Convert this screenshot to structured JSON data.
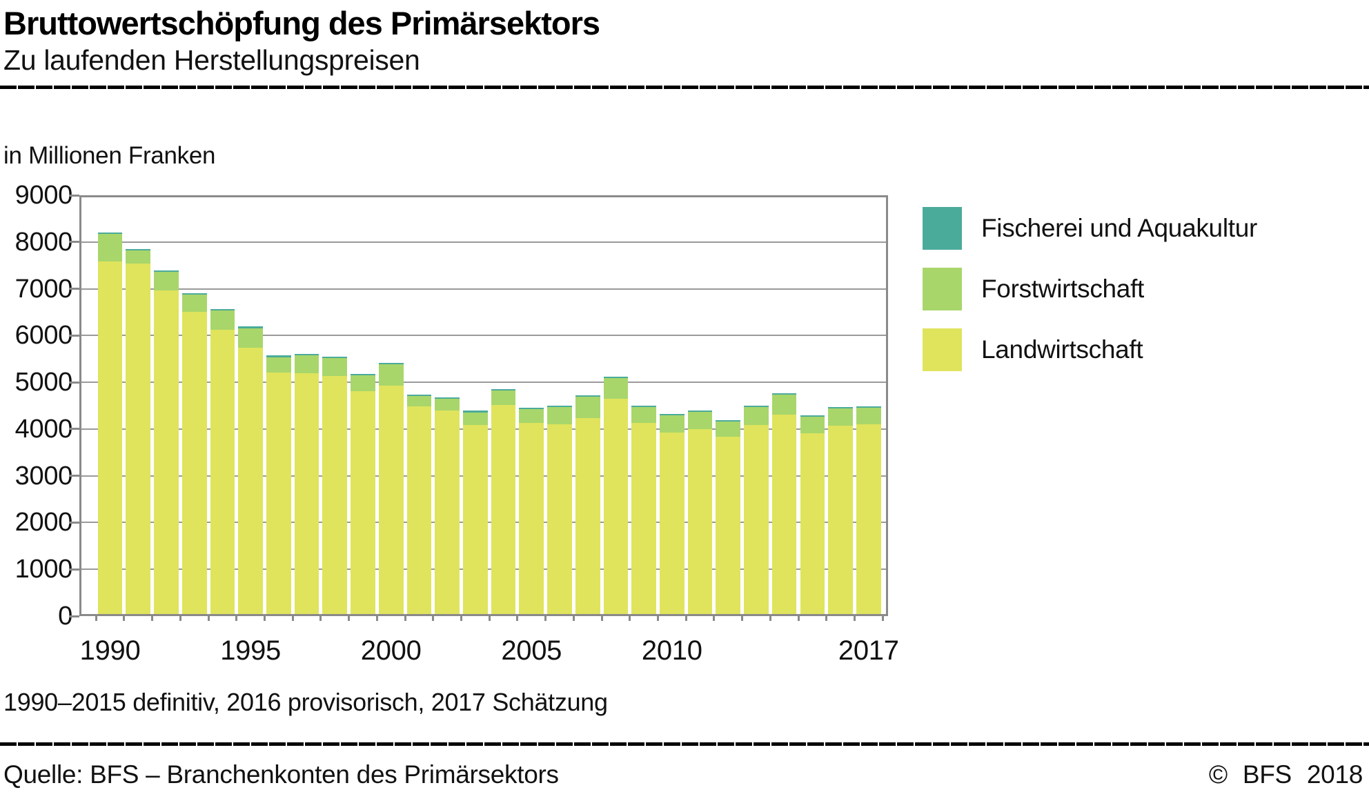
{
  "header": {
    "title": "Bruttowertschöpfung des Primärsektors",
    "subtitle": "Zu laufenden Herstellungspreisen"
  },
  "chart_data": {
    "type": "bar",
    "stacked": true,
    "title": "Bruttowertschöpfung des Primärsektors",
    "subtitle": "Zu laufenden Herstellungspreisen",
    "unit_label": "in Millionen Franken",
    "ylabel": "in Millionen Franken",
    "xlabel": "",
    "ylim": [
      0,
      9000
    ],
    "ytick_step": 1000,
    "grid": true,
    "legend_position": "right",
    "categories": [
      1990,
      1991,
      1992,
      1993,
      1994,
      1995,
      1996,
      1997,
      1998,
      1999,
      2000,
      2001,
      2002,
      2003,
      2004,
      2005,
      2006,
      2007,
      2008,
      2009,
      2010,
      2011,
      2012,
      2013,
      2014,
      2015,
      2016,
      2017
    ],
    "x_ticks": [
      {
        "label": "1990",
        "index": 0
      },
      {
        "label": "1995",
        "index": 5
      },
      {
        "label": "2000",
        "index": 10
      },
      {
        "label": "2005",
        "index": 15
      },
      {
        "label": "2010",
        "index": 20
      },
      {
        "label": "2017",
        "index": 27
      }
    ],
    "series": [
      {
        "name": "Landwirtschaft",
        "color": "#dfe45c",
        "values": [
          7585,
          7535,
          6960,
          6510,
          6130,
          5740,
          5210,
          5190,
          5130,
          4805,
          4930,
          4480,
          4400,
          4090,
          4520,
          4135,
          4100,
          4240,
          4650,
          4135,
          3920,
          4000,
          3840,
          4090,
          4310,
          3910,
          4075,
          4095
        ]
      },
      {
        "name": "Forstwirtschaft",
        "color": "#a8d66b",
        "values": [
          595,
          280,
          400,
          370,
          410,
          420,
          330,
          380,
          385,
          345,
          450,
          220,
          245,
          270,
          310,
          285,
          365,
          450,
          435,
          330,
          370,
          370,
          320,
          375,
          420,
          360,
          360,
          360
        ]
      },
      {
        "name": "Fischerei und Aquakultur",
        "color": "#4bab9b",
        "values": [
          30,
          30,
          30,
          30,
          30,
          30,
          30,
          30,
          30,
          30,
          30,
          30,
          30,
          30,
          30,
          30,
          30,
          30,
          30,
          30,
          30,
          30,
          30,
          30,
          30,
          30,
          30,
          30
        ]
      }
    ],
    "legend_order": [
      "Fischerei und Aquakultur",
      "Forstwirtschaft",
      "Landwirtschaft"
    ]
  },
  "footnote": "1990–2015 definitiv, 2016 provisorisch, 2017 Schätzung",
  "source": {
    "quelle": "Quelle: BFS – Branchenkonten des Primärsektors",
    "copyright": "© BFS 2018"
  },
  "colors": {
    "gridline": "#9a9a9a",
    "axis": "#8a8a8a",
    "rule": "#000000"
  }
}
